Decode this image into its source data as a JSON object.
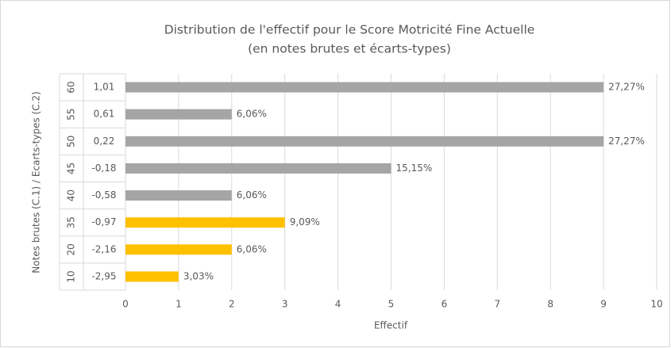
{
  "chart_data": {
    "type": "bar",
    "orientation": "horizontal",
    "title": "Distribution de l'effectif pour le Score Motricité Fine Actuelle",
    "subtitle": "(en notes brutes et écarts-types)",
    "x_label": "Effectif",
    "y_label": "Notes brutes (C.1) / Ecarts-types (C.2)",
    "categories": [
      "60",
      "55",
      "50",
      "45",
      "40",
      "35",
      "20",
      "10"
    ],
    "subcategories": [
      "1,01",
      "0,61",
      "0,22",
      "-0,18",
      "-0,58",
      "-0,97",
      "-2,16",
      "-2,95"
    ],
    "values": [
      9,
      2,
      9,
      5,
      2,
      3,
      2,
      1
    ],
    "value_labels": [
      "27,27%",
      "6,06%",
      "27,27%",
      "15,15%",
      "6,06%",
      "9,09%",
      "6,06%",
      "3,03%"
    ],
    "colors": [
      "#a5a5a5",
      "#a5a5a5",
      "#a5a5a5",
      "#a5a5a5",
      "#a5a5a5",
      "#ffc000",
      "#ffc000",
      "#ffc000"
    ],
    "xlim": [
      0,
      10
    ],
    "xticks": [
      0,
      1,
      2,
      3,
      4,
      5,
      6,
      7,
      8,
      9,
      10
    ],
    "grid": true
  }
}
